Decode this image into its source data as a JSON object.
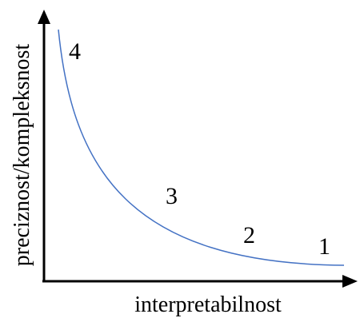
{
  "diagram": {
    "x_axis_label": "interpretabilnost",
    "y_axis_label": "preciznost/kompleksnost",
    "curve_color": "#4472C4",
    "axis_color": "#000000",
    "points": [
      {
        "label": "4"
      },
      {
        "label": "3"
      },
      {
        "label": "2"
      },
      {
        "label": "1"
      }
    ]
  }
}
